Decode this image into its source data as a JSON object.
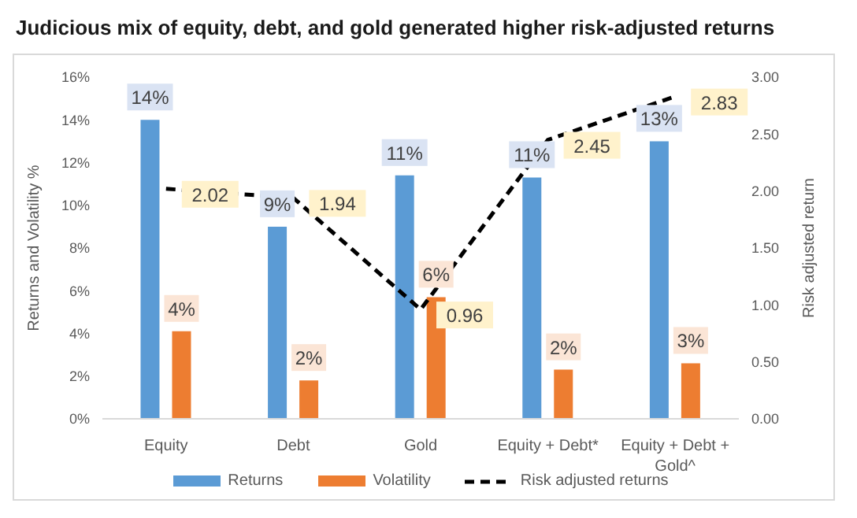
{
  "chart_data": {
    "type": "bar",
    "title": "Judicious mix of equity, debt, and gold generated higher risk-adjusted returns",
    "ylabel": "Returns and Volatility %",
    "y2label": "Risk adjusted return",
    "categories": [
      "Equity",
      "Debt",
      "Gold",
      "Equity + Debt*",
      "Equity + Debt + Gold^"
    ],
    "series": [
      {
        "name": "Returns",
        "color": "#5b9bd5",
        "values": [
          14.0,
          9.0,
          11.4,
          11.3,
          13.0
        ],
        "value_labels": [
          "14%",
          "9%",
          "11%",
          "11%",
          "13%"
        ]
      },
      {
        "name": "Volatility",
        "color": "#ed7d31",
        "values": [
          4.1,
          1.8,
          5.7,
          2.3,
          2.6
        ],
        "value_labels": [
          "4%",
          "2%",
          "6%",
          "2%",
          "3%"
        ]
      },
      {
        "name": "Risk adjusted returns",
        "type": "line",
        "axis": "y2",
        "color": "#000000",
        "line_style": "dashed",
        "marker": "none",
        "values": [
          2.02,
          1.94,
          0.96,
          2.45,
          2.83
        ],
        "data_labels": true
      }
    ],
    "ylim": [
      0,
      16
    ],
    "yticks": [
      {
        "value": 0,
        "label": "0%"
      },
      {
        "value": 2,
        "label": "2%"
      },
      {
        "value": 4,
        "label": "4%"
      },
      {
        "value": 6,
        "label": "6%"
      },
      {
        "value": 8,
        "label": "8%"
      },
      {
        "value": 10,
        "label": "10%"
      },
      {
        "value": 12,
        "label": "12%"
      },
      {
        "value": 14,
        "label": "14%"
      },
      {
        "value": 16,
        "label": "16%"
      }
    ],
    "y2lim": [
      0,
      3
    ],
    "y2ticks": [
      {
        "value": 0,
        "label": "0.00"
      },
      {
        "value": 0.5,
        "label": "0.50"
      },
      {
        "value": 1,
        "label": "1.00"
      },
      {
        "value": 1.5,
        "label": "1.50"
      },
      {
        "value": 2,
        "label": "2.00"
      },
      {
        "value": 2.5,
        "label": "2.50"
      },
      {
        "value": 3,
        "label": "3.00"
      }
    ],
    "legend": "bottom"
  }
}
